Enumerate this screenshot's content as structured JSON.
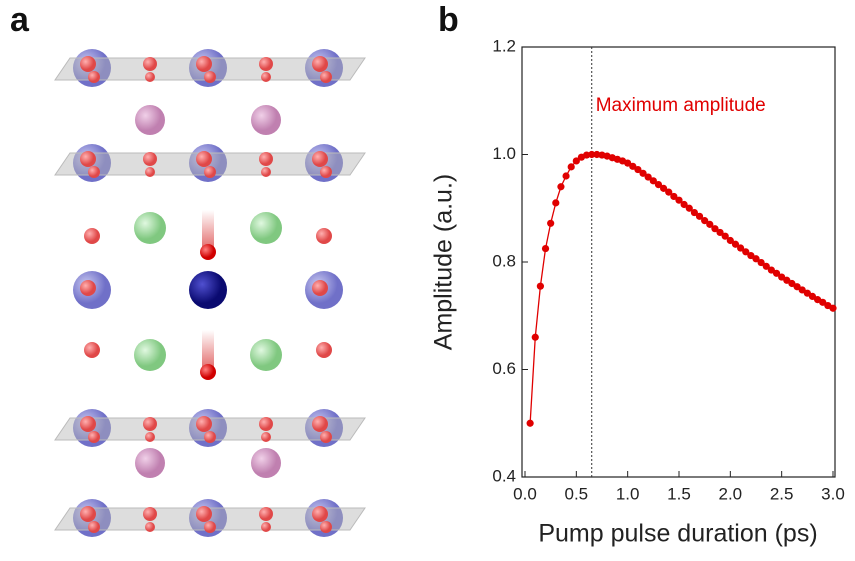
{
  "panel_labels": [
    "a",
    "b"
  ],
  "chart_data": {
    "type": "line",
    "xlabel": "Pump pulse duration (ps)",
    "ylabel": "Amplitude (a.u.)",
    "annotation": {
      "text": "Maximum amplitude",
      "x": 0.65
    },
    "xlim": [
      0,
      3.0
    ],
    "ylim": [
      0.4,
      1.2
    ],
    "xticks": [
      {
        "value": 0,
        "label": "0.0"
      },
      0.5,
      {
        "value": 1,
        "label": "1.0"
      },
      1.5,
      {
        "value": 2,
        "label": "2.0"
      },
      2.5,
      {
        "value": 3,
        "label": "3.0"
      }
    ],
    "yticks": [
      0.4,
      0.6,
      0.8,
      {
        "value": 1,
        "label": "1.0"
      },
      1.2
    ],
    "series": [
      {
        "color": "#e00000",
        "x": [
          0.05,
          0.1,
          0.15,
          0.2,
          0.25,
          0.3,
          0.35,
          0.4,
          0.45,
          0.5,
          0.55,
          0.6,
          0.65,
          0.7,
          0.75,
          0.8,
          0.85,
          0.9,
          0.95,
          1.0,
          1.05,
          1.1,
          1.15,
          1.2,
          1.25,
          1.3,
          1.35,
          1.4,
          1.45,
          1.5,
          1.55,
          1.6,
          1.65,
          1.7,
          1.75,
          1.8,
          1.85,
          1.9,
          1.95,
          2.0,
          2.05,
          2.1,
          2.15,
          2.2,
          2.25,
          2.3,
          2.35,
          2.4,
          2.45,
          2.5,
          2.55,
          2.6,
          2.65,
          2.7,
          2.75,
          2.8,
          2.85,
          2.9,
          2.95,
          3.0
        ],
        "values": [
          0.5,
          0.66,
          0.755,
          0.825,
          0.872,
          0.91,
          0.94,
          0.96,
          0.977,
          0.988,
          0.995,
          0.999,
          1.0,
          1.0,
          0.999,
          0.997,
          0.994,
          0.991,
          0.988,
          0.984,
          0.978,
          0.972,
          0.965,
          0.958,
          0.951,
          0.944,
          0.937,
          0.93,
          0.922,
          0.915,
          0.907,
          0.9,
          0.892,
          0.885,
          0.877,
          0.87,
          0.862,
          0.855,
          0.848,
          0.84,
          0.833,
          0.826,
          0.819,
          0.812,
          0.806,
          0.799,
          0.792,
          0.785,
          0.779,
          0.772,
          0.766,
          0.76,
          0.754,
          0.748,
          0.742,
          0.736,
          0.73,
          0.725,
          0.719,
          0.714
        ]
      }
    ]
  }
}
